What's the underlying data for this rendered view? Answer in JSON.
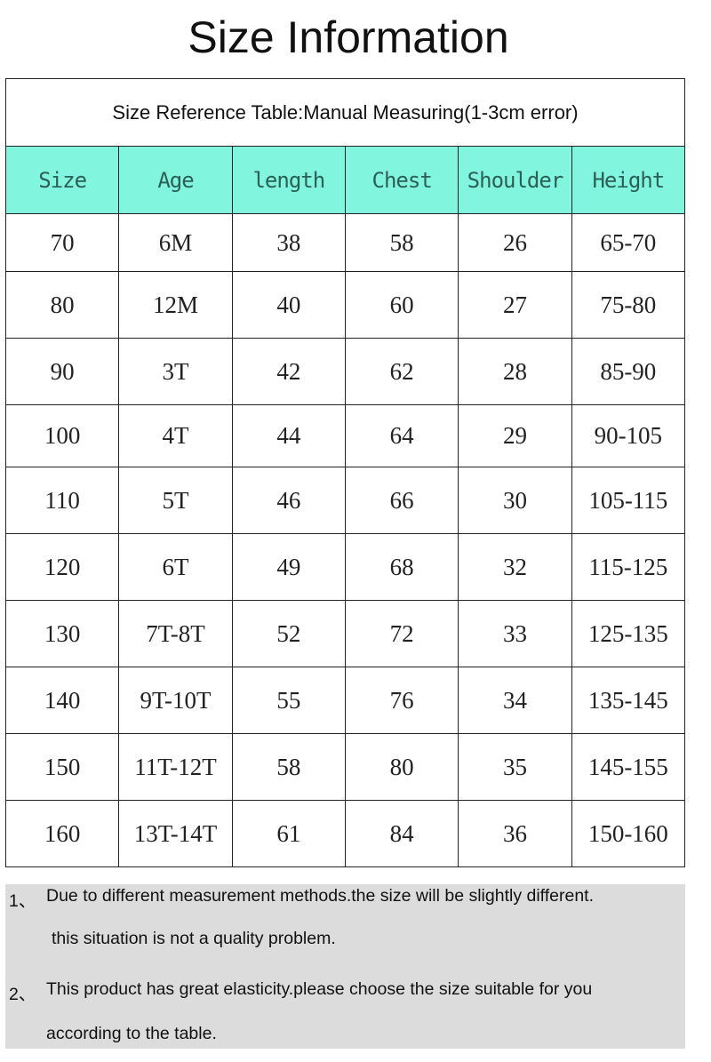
{
  "title": "Size Information",
  "table": {
    "caption": "Size Reference Table:Manual Measuring(1-3cm error)",
    "header_color": "#82f5df",
    "columns": [
      "Size",
      "Age",
      "length",
      "Chest",
      "Shoulder",
      "Height"
    ],
    "rows": [
      [
        "70",
        "6M",
        "38",
        "58",
        "26",
        "65-70"
      ],
      [
        "80",
        "12M",
        "40",
        "60",
        "27",
        "75-80"
      ],
      [
        "90",
        "3T",
        "42",
        "62",
        "28",
        "85-90"
      ],
      [
        "100",
        "4T",
        "44",
        "64",
        "29",
        "90-105"
      ],
      [
        "110",
        "5T",
        "46",
        "66",
        "30",
        "105-115"
      ],
      [
        "120",
        "6T",
        "49",
        "68",
        "32",
        "115-125"
      ],
      [
        "130",
        "7T-8T",
        "52",
        "72",
        "33",
        "125-135"
      ],
      [
        "140",
        "9T-10T",
        "55",
        "76",
        "34",
        "135-145"
      ],
      [
        "150",
        "11T-12T",
        "58",
        "80",
        "35",
        "145-155"
      ],
      [
        "160",
        "13T-14T",
        "61",
        "84",
        "36",
        "150-160"
      ]
    ]
  },
  "notes": [
    {
      "number": "1、",
      "line1": "Due to different measurement methods.the size will be slightly different.",
      "line2": "this situation is not a quality problem."
    },
    {
      "number": "2、",
      "line1": "This product has great elasticity.please choose the size suitable for you",
      "line2": "according to the table."
    }
  ]
}
